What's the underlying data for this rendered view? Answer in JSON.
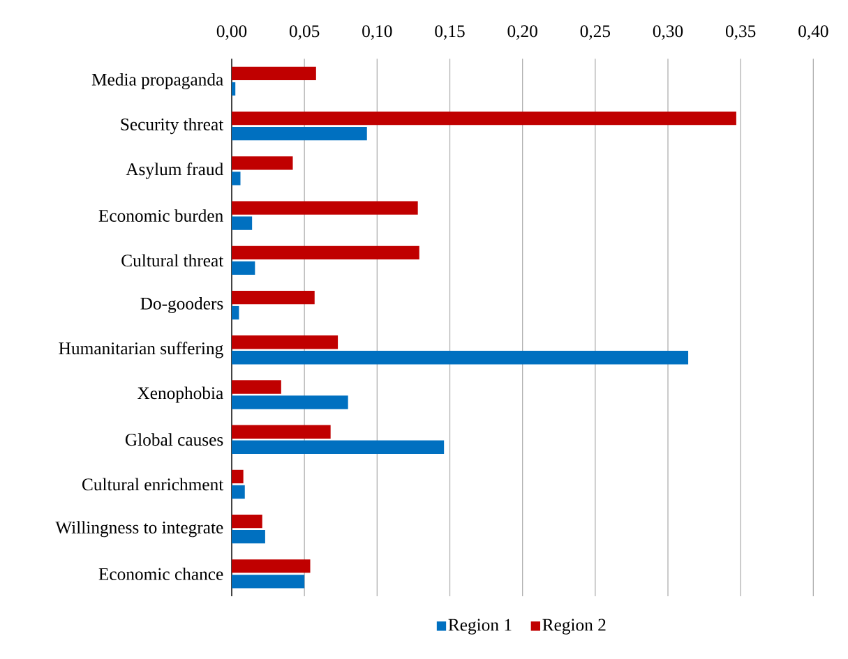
{
  "chart_data": {
    "type": "bar",
    "orientation": "horizontal",
    "categories": [
      "Media propaganda",
      "Security threat",
      "Asylum fraud",
      "Economic burden",
      "Cultural threat",
      "Do-gooders",
      "Humanitarian suffering",
      "Xenophobia",
      "Global causes",
      "Cultural enrichment",
      "Willingness to integrate",
      "Economic chance"
    ],
    "series": [
      {
        "name": "Region 1",
        "color": "#0070c0",
        "values": [
          0.0025,
          0.093,
          0.006,
          0.014,
          0.016,
          0.005,
          0.314,
          0.08,
          0.146,
          0.009,
          0.023,
          0.05
        ]
      },
      {
        "name": "Region 2",
        "color": "#c00000",
        "values": [
          0.058,
          0.347,
          0.042,
          0.128,
          0.129,
          0.057,
          0.073,
          0.034,
          0.068,
          0.008,
          0.021,
          0.054
        ]
      }
    ],
    "xlim": [
      0,
      0.4
    ],
    "xticks": [
      {
        "value": 0,
        "label": "0,00"
      },
      {
        "value": 0.05,
        "label": "0,05"
      },
      {
        "value": 0.1,
        "label": "0,10"
      },
      {
        "value": 0.15,
        "label": "0,15"
      },
      {
        "value": 0.2,
        "label": "0,20"
      },
      {
        "value": 0.25,
        "label": "0,25"
      },
      {
        "value": 0.3,
        "label": "0,30"
      },
      {
        "value": 0.35,
        "label": "0,35"
      },
      {
        "value": 0.4,
        "label": "0,40"
      }
    ],
    "grid": "x",
    "legend": "bottom"
  }
}
